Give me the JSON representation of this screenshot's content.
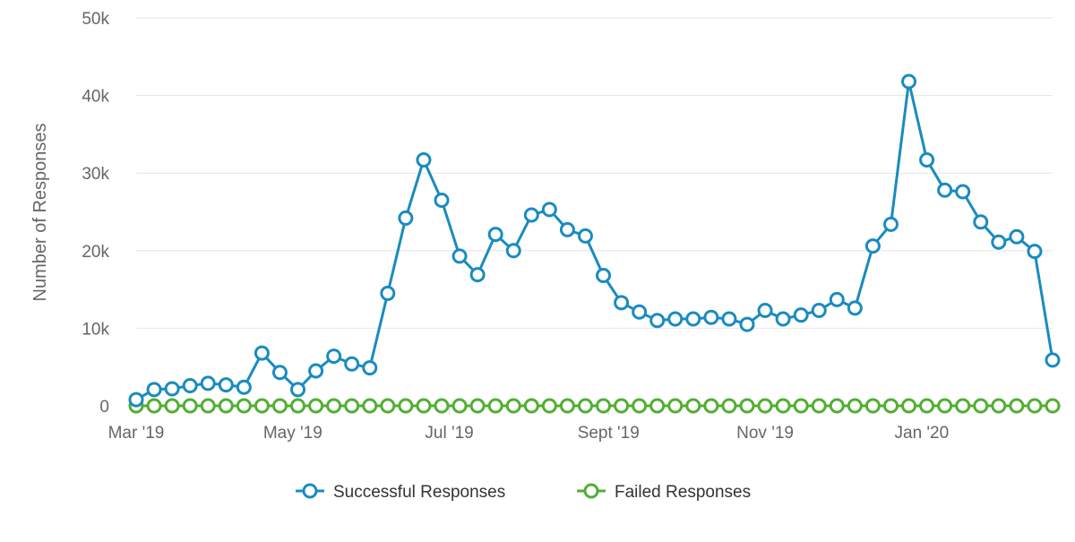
{
  "chart_data": {
    "type": "line",
    "title": "",
    "xlabel": "",
    "ylabel": "Number of Responses",
    "ylim": [
      0,
      50000
    ],
    "grid": "horizontal",
    "legend_position": "bottom-center",
    "y_ticks": [
      {
        "value": 0,
        "label": "0"
      },
      {
        "value": 10000,
        "label": "10k"
      },
      {
        "value": 20000,
        "label": "20k"
      },
      {
        "value": 30000,
        "label": "30k"
      },
      {
        "value": 40000,
        "label": "40k"
      },
      {
        "value": 50000,
        "label": "50k"
      }
    ],
    "x_ticks": [
      {
        "date": "2019-03-01",
        "label": "Mar '19"
      },
      {
        "date": "2019-05-01",
        "label": "May '19"
      },
      {
        "date": "2019-07-01",
        "label": "Jul '19"
      },
      {
        "date": "2019-09-01",
        "label": "Sept '19"
      },
      {
        "date": "2019-11-01",
        "label": "Nov '19"
      },
      {
        "date": "2020-01-01",
        "label": "Jan '20"
      }
    ],
    "x": [
      "2019-03-01",
      "2019-03-08",
      "2019-03-15",
      "2019-03-22",
      "2019-03-29",
      "2019-04-05",
      "2019-04-12",
      "2019-04-19",
      "2019-04-26",
      "2019-05-03",
      "2019-05-10",
      "2019-05-17",
      "2019-05-24",
      "2019-05-31",
      "2019-06-07",
      "2019-06-14",
      "2019-06-21",
      "2019-06-28",
      "2019-07-05",
      "2019-07-12",
      "2019-07-19",
      "2019-07-26",
      "2019-08-02",
      "2019-08-09",
      "2019-08-16",
      "2019-08-23",
      "2019-08-30",
      "2019-09-06",
      "2019-09-13",
      "2019-09-20",
      "2019-09-27",
      "2019-10-04",
      "2019-10-11",
      "2019-10-18",
      "2019-10-25",
      "2019-11-01",
      "2019-11-08",
      "2019-11-15",
      "2019-11-22",
      "2019-11-29",
      "2019-12-06",
      "2019-12-13",
      "2019-12-20",
      "2019-12-27",
      "2020-01-03",
      "2020-01-10",
      "2020-01-17",
      "2020-01-24",
      "2020-01-31",
      "2020-02-07",
      "2020-02-14",
      "2020-02-21"
    ],
    "series": [
      {
        "name": "Successful Responses",
        "color": "#1a8bc0",
        "values": [
          800,
          2100,
          2200,
          2600,
          2900,
          2700,
          2400,
          6800,
          4300,
          2100,
          4500,
          6400,
          5400,
          4900,
          14500,
          24200,
          31700,
          26500,
          19300,
          16900,
          22100,
          20000,
          24600,
          25300,
          22700,
          21900,
          16800,
          13300,
          12100,
          11000,
          11200,
          11200,
          11400,
          11200,
          10500,
          12300,
          11200,
          11700,
          12300,
          13700,
          12600,
          20600,
          23400,
          41800,
          31700,
          27800,
          27600,
          23700,
          21100,
          21800,
          19900,
          5900
        ]
      },
      {
        "name": "Failed Responses",
        "color": "#52ae32",
        "values": [
          0,
          0,
          0,
          0,
          0,
          0,
          0,
          0,
          0,
          0,
          0,
          0,
          0,
          0,
          0,
          0,
          0,
          0,
          0,
          0,
          0,
          0,
          0,
          0,
          0,
          0,
          0,
          0,
          0,
          0,
          0,
          0,
          0,
          0,
          0,
          0,
          0,
          0,
          0,
          0,
          0,
          0,
          0,
          0,
          0,
          0,
          0,
          0,
          0,
          0,
          0,
          0
        ]
      }
    ]
  },
  "colors": {
    "grid": "#e6e6e6",
    "axis": "#ccd6eb",
    "text": "#666666"
  }
}
